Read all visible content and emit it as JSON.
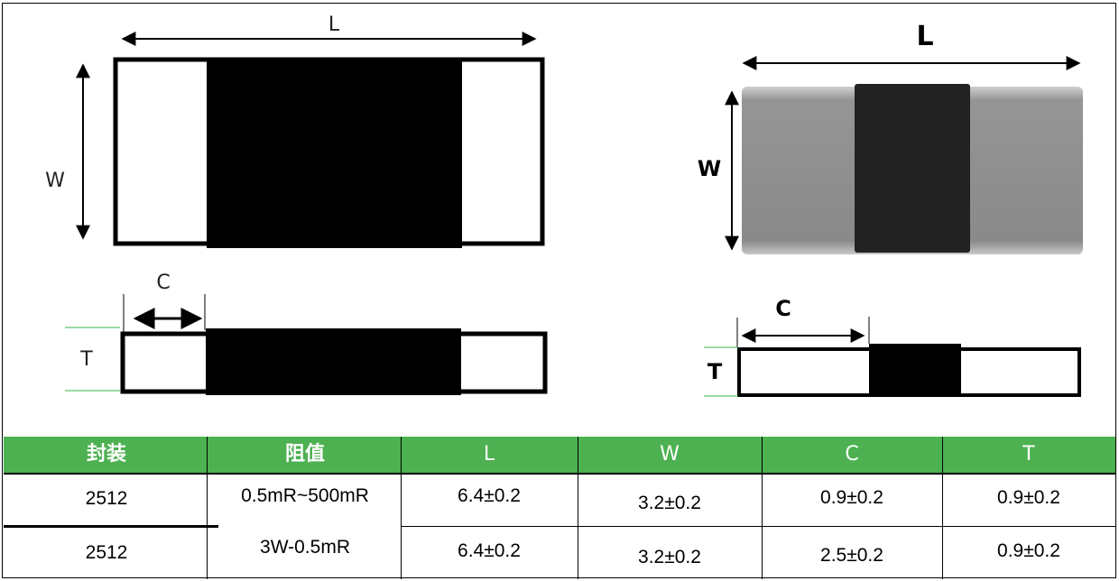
{
  "diagram": {
    "schematic": {
      "length_label": "L",
      "width_label": "W",
      "terminal_label": "C",
      "thickness_label": "T"
    },
    "photo": {
      "length_label": "L",
      "width_label": "W",
      "terminal_label": "C",
      "thickness_label": "T"
    }
  },
  "table": {
    "headers": [
      "封装",
      "阻值",
      "L",
      "W",
      "C",
      "T"
    ],
    "rows": [
      [
        "2512",
        "0.5mR~500mR",
        "6.4±0.2",
        "3.2±0.2",
        "0.9±0.2",
        "0.9±0.2"
      ],
      [
        "2512",
        "3W-0.5mR",
        "6.4±0.2",
        "3.2±0.2",
        "2.5±0.2",
        "0.9±0.2"
      ]
    ]
  },
  "colors": {
    "header_bg": "#4db151",
    "green_guides": "#39b54a",
    "dark_body": "#000000",
    "photo_end": "#8e8e8e"
  }
}
